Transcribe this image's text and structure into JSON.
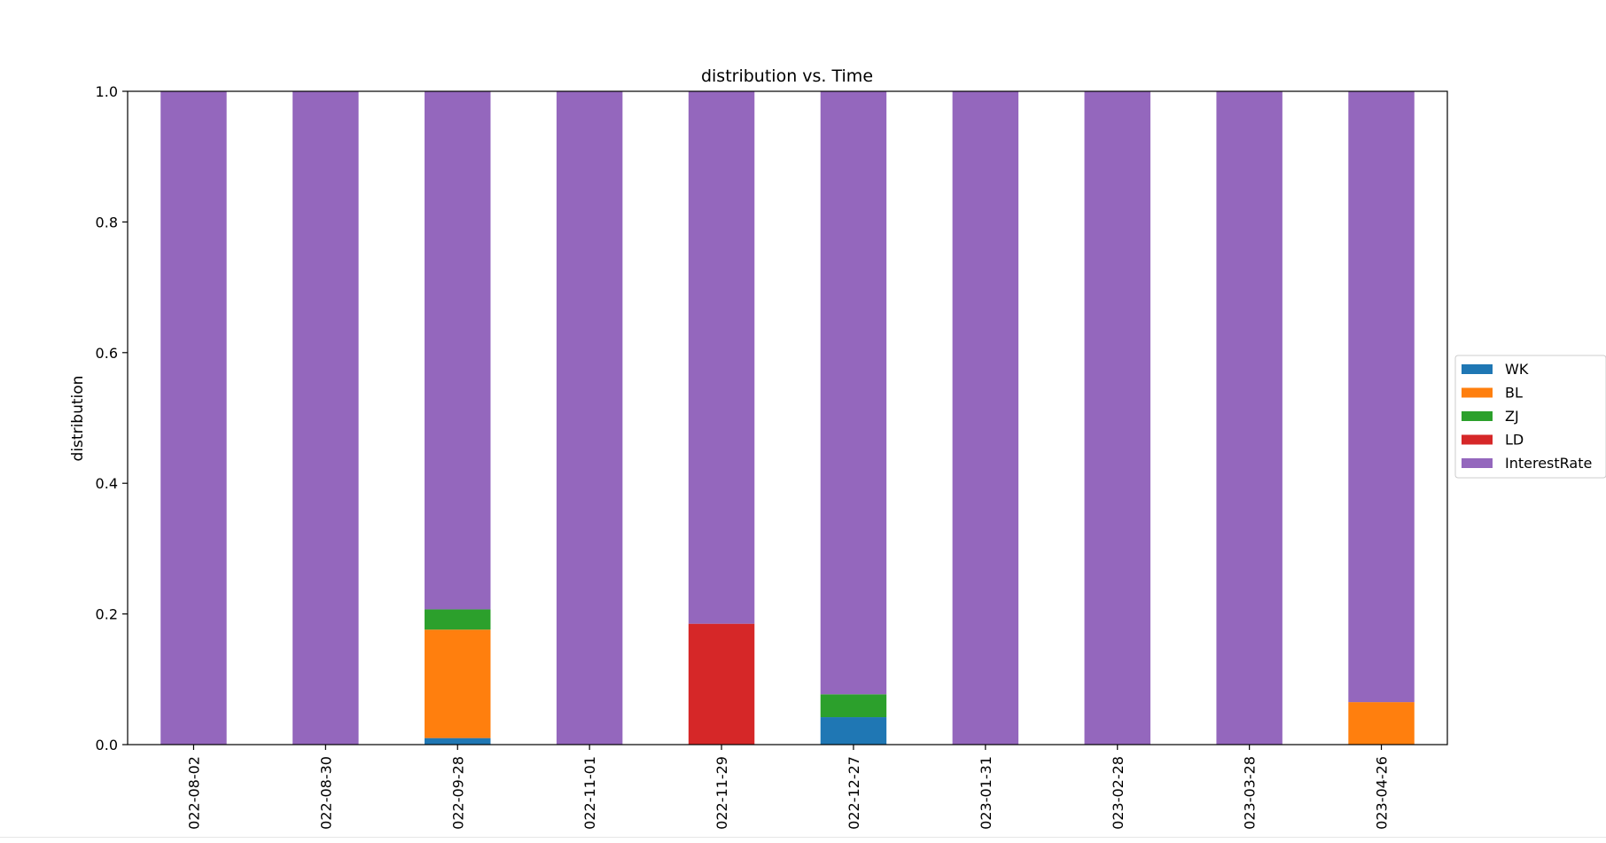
{
  "chart_data": {
    "type": "bar",
    "stacked": true,
    "title": "distribution vs. Time",
    "xlabel": "",
    "ylabel": "distribution",
    "ylim": [
      0,
      1.0
    ],
    "yticks": [
      "0.0",
      "0.2",
      "0.4",
      "0.6",
      "0.8",
      "1.0"
    ],
    "categories": [
      "022-08-02",
      "022-08-30",
      "022-09-28",
      "022-11-01",
      "022-11-29",
      "022-12-27",
      "023-01-31",
      "023-02-28",
      "023-03-28",
      "023-04-26"
    ],
    "legend_position": "right",
    "series": [
      {
        "name": "WK",
        "color": "#1f77b4",
        "values": [
          0,
          0,
          0.01,
          0,
          0,
          0.042,
          0,
          0,
          0,
          0
        ]
      },
      {
        "name": "BL",
        "color": "#ff7f0e",
        "values": [
          0,
          0,
          0.166,
          0,
          0,
          0,
          0,
          0,
          0,
          0.065
        ]
      },
      {
        "name": "ZJ",
        "color": "#2ca02c",
        "values": [
          0,
          0,
          0.031,
          0,
          0,
          0.035,
          0,
          0,
          0,
          0
        ]
      },
      {
        "name": "LD",
        "color": "#d62728",
        "values": [
          0,
          0,
          0,
          0,
          0.185,
          0,
          0,
          0,
          0,
          0
        ]
      },
      {
        "name": "InterestRate",
        "color": "#9467bd",
        "values": [
          1.0,
          1.0,
          0.793,
          1.0,
          0.815,
          0.923,
          1.0,
          1.0,
          1.0,
          0.935
        ]
      }
    ]
  }
}
